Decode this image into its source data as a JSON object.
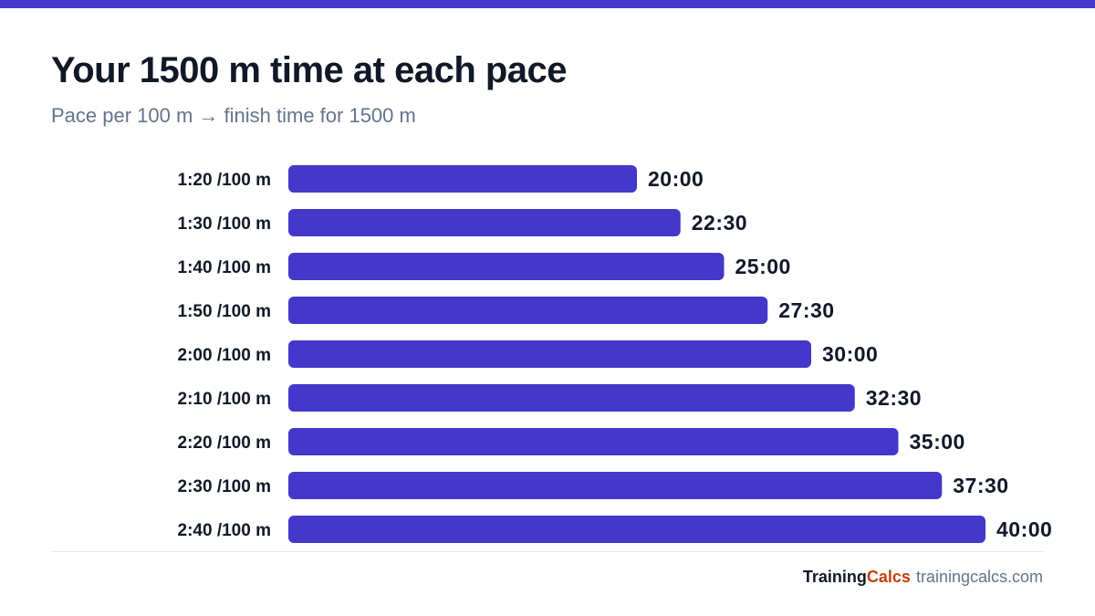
{
  "header": {
    "title": "Your 1500 m time at each pace",
    "subtitle": "Pace per 100 m → finish time for 1500 m"
  },
  "footer": {
    "brand_part1": "Training",
    "brand_part2": "Calcs",
    "site": "trainingcalcs.com"
  },
  "colors": {
    "accent": "#4338ca",
    "bar": "#4338ca",
    "brand_orange": "#c2410c",
    "text": "#111827",
    "muted": "#64748b"
  },
  "chart_data": {
    "type": "bar",
    "orientation": "horizontal",
    "title": "Your 1500 m time at each pace",
    "subtitle": "Pace per 100 m → finish time for 1500 m",
    "categories": [
      "1:20 /100 m",
      "1:30 /100 m",
      "1:40 /100 m",
      "1:50 /100 m",
      "2:00 /100 m",
      "2:10 /100 m",
      "2:20 /100 m",
      "2:30 /100 m",
      "2:40 /100 m"
    ],
    "values": [
      20,
      22.5,
      25,
      27.5,
      30,
      32.5,
      35,
      37.5,
      40
    ],
    "value_labels": [
      "20:00",
      "22:30",
      "25:00",
      "27:30",
      "30:00",
      "32:30",
      "35:00",
      "37:30",
      "40:00"
    ],
    "value_unit": "minutes",
    "xlim": [
      0,
      40
    ],
    "grid": false,
    "legend": "none"
  }
}
